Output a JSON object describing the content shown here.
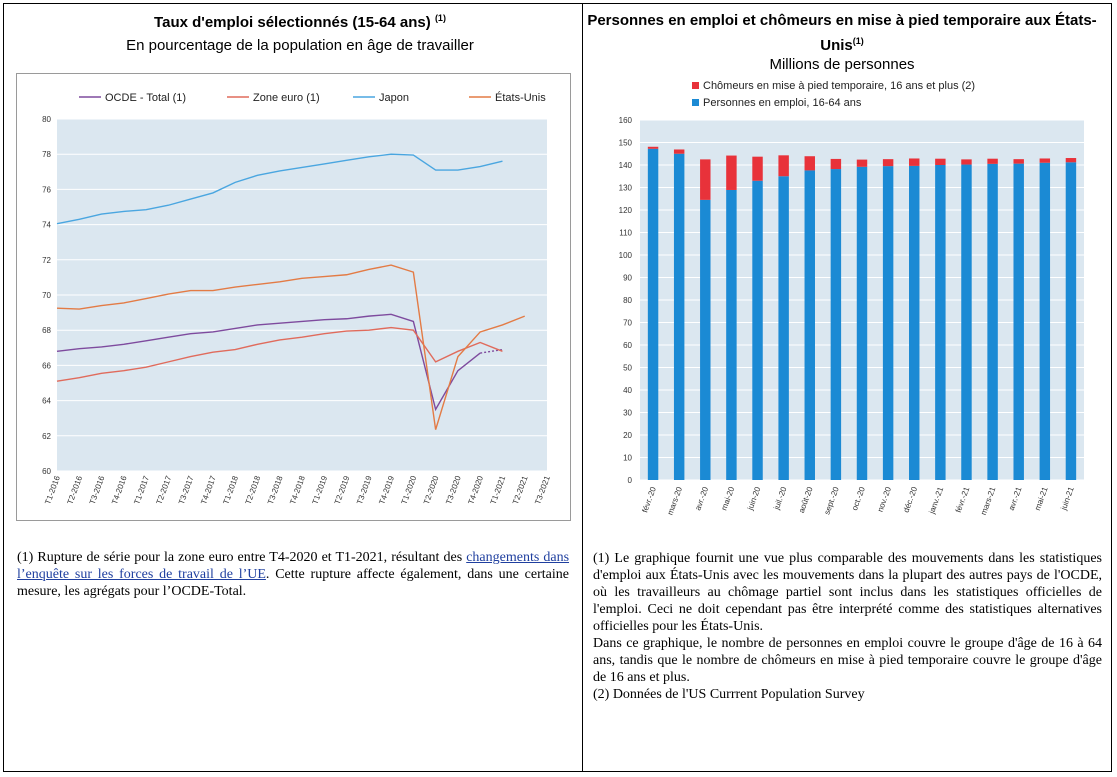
{
  "left_panel": {
    "title": "Taux d'emploi sélectionnés (15-64 ans)",
    "title_note": "(1)",
    "subtitle": "En pourcentage de la population en âge de travailler",
    "footnote_prefix": "(1) Rupture de série pour la zone euro entre T4-2020 et T1-2021, résultant des",
    "footnote_link": "changements dans l’enquête sur les forces de travail de l’UE",
    "footnote_suffix": ". Cette rupture affecte également, dans une certaine mesure, les agrégats pour l’OCDE-Total."
  },
  "right_panel": {
    "title": "Personnes en emploi et chômeurs en mise à pied temporaire aux États-Unis",
    "title_note": "(1)",
    "subtitle": "Millions de personnes",
    "footnote_1": "(1) Le graphique fournit une vue plus comparable des mouvements dans les statistiques d'emploi aux États-Unis avec les mouvements dans la plupart des autres pays de l'OCDE, où les travailleurs au chômage partiel sont inclus dans les statistiques officielles de l'emploi. Ceci ne doit cependant pas être interprété comme des statistiques alternatives officielles pour les États-Unis.",
    "footnote_2": "Dans ce graphique, le nombre de personnes en emploi couvre le groupe d'âge de 16 à 64 ans, tandis que le nombre de chômeurs en mise à pied temporaire couvre le groupe d'âge de 16 ans et plus.",
    "footnote_3": "(2) Données de l'US Currrent Population Survey"
  },
  "chart_data": [
    {
      "type": "line",
      "title": "",
      "xlabel": "",
      "ylabel": "",
      "categories": [
        "T1-2016",
        "T2-2016",
        "T3-2016",
        "T4-2016",
        "T1-2017",
        "T2-2017",
        "T3-2017",
        "T4-2017",
        "T1-2018",
        "T2-2018",
        "T3-2018",
        "T4-2018",
        "T1-2019",
        "T2-2019",
        "T3-2019",
        "T4-2019",
        "T1-2020",
        "T2-2020",
        "T3-2020",
        "T4-2020",
        "T1-2021",
        "T2-2021",
        "T3-2021"
      ],
      "ylim": [
        60,
        80
      ],
      "yticks": [
        60,
        62,
        64,
        66,
        68,
        70,
        72,
        74,
        76,
        78,
        80
      ],
      "grid": true,
      "legend": "top",
      "series": [
        {
          "name": "OCDE - Total (1)",
          "color": "#7e4b9e",
          "values": [
            66.8,
            66.95,
            67.05,
            67.2,
            67.4,
            67.6,
            67.8,
            67.9,
            68.1,
            68.3,
            68.4,
            68.5,
            68.6,
            68.65,
            68.8,
            68.9,
            68.5,
            63.5,
            65.7,
            66.7,
            66.9,
            null,
            null
          ]
        },
        {
          "name": "Zone euro (1)",
          "color": "#e06b5c",
          "values": [
            65.1,
            65.3,
            65.55,
            65.7,
            65.9,
            66.2,
            66.5,
            66.75,
            66.9,
            67.2,
            67.45,
            67.6,
            67.8,
            67.95,
            68.0,
            68.15,
            68.0,
            66.2,
            66.8,
            67.3,
            66.8,
            null,
            null
          ]
        },
        {
          "name": "Japon",
          "color": "#4aa6e0",
          "values": [
            74.05,
            74.3,
            74.6,
            74.75,
            74.85,
            75.1,
            75.45,
            75.8,
            76.4,
            76.8,
            77.05,
            77.25,
            77.45,
            77.65,
            77.85,
            78.0,
            77.95,
            77.1,
            77.1,
            77.3,
            77.6,
            null,
            null
          ]
        },
        {
          "name": "États-Unis",
          "color": "#e37b45",
          "values": [
            69.25,
            69.2,
            69.4,
            69.55,
            69.8,
            70.05,
            70.25,
            70.25,
            70.45,
            70.6,
            70.75,
            70.95,
            71.05,
            71.15,
            71.45,
            71.7,
            71.3,
            62.35,
            66.5,
            67.9,
            68.3,
            68.8,
            null
          ]
        }
      ],
      "dotted_tail": {
        "from_index": 19,
        "to_index": 20
      }
    },
    {
      "type": "bar",
      "stacked": true,
      "title": "",
      "xlabel": "",
      "ylabel": "",
      "categories": [
        "févr.-20",
        "mars-20",
        "avr.-20",
        "mai-20",
        "juin-20",
        "juil.-20",
        "août-20",
        "sept.-20",
        "oct.-20",
        "nov.-20",
        "déc.-20",
        "janv.-21",
        "févr.-21",
        "mars-21",
        "avr.-21",
        "mai-21",
        "juin-21"
      ],
      "ylim": [
        0,
        160
      ],
      "yticks": [
        0,
        10,
        20,
        30,
        40,
        50,
        60,
        70,
        80,
        90,
        100,
        110,
        120,
        130,
        140,
        150,
        160
      ],
      "grid": true,
      "legend": "top-left",
      "series": [
        {
          "name": "Personnes en emploi, 16-64 ans",
          "color": "#1b8ad4",
          "values": [
            147.2,
            145.0,
            124.5,
            128.9,
            133.0,
            135.0,
            137.6,
            138.2,
            139.2,
            139.5,
            139.6,
            140.0,
            140.2,
            140.5,
            140.6,
            141.0,
            141.2
          ]
        },
        {
          "name": "Chômeurs en mise à pied temporaire, 16 ans et plus (2)",
          "color": "#e8323a",
          "values": [
            0.9,
            1.9,
            18.0,
            15.3,
            10.7,
            9.3,
            6.3,
            4.5,
            3.2,
            3.1,
            3.3,
            2.8,
            2.3,
            2.3,
            2.0,
            1.9,
            1.9
          ]
        }
      ]
    }
  ]
}
